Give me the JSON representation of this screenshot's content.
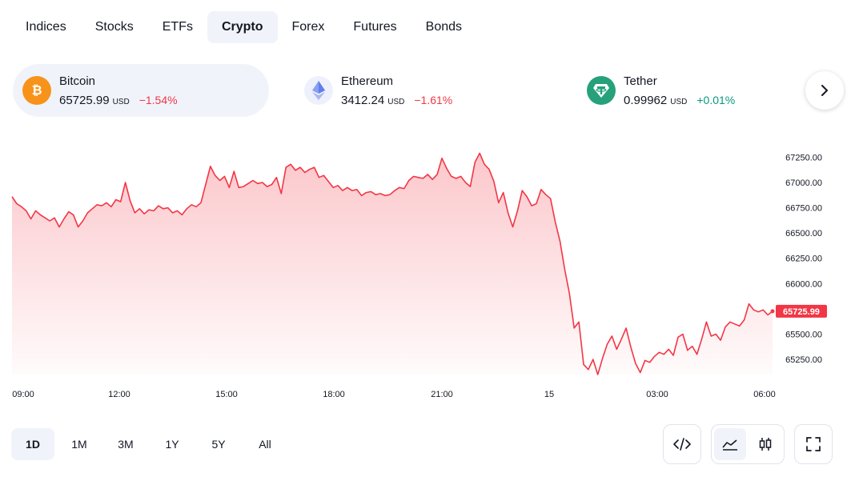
{
  "tabs": [
    {
      "label": "Indices",
      "active": false
    },
    {
      "label": "Stocks",
      "active": false
    },
    {
      "label": "ETFs",
      "active": false
    },
    {
      "label": "Crypto",
      "active": true
    },
    {
      "label": "Forex",
      "active": false
    },
    {
      "label": "Futures",
      "active": false
    },
    {
      "label": "Bonds",
      "active": false
    }
  ],
  "assets": [
    {
      "name": "Bitcoin",
      "price": "65725.99",
      "currency": "USD",
      "change": "−1.54%",
      "direction": "down",
      "icon": "bitcoin-icon",
      "color": "#f7931a",
      "active": true
    },
    {
      "name": "Ethereum",
      "price": "3412.24",
      "currency": "USD",
      "change": "−1.61%",
      "direction": "down",
      "icon": "ethereum-icon",
      "color": "#627eea",
      "active": false
    },
    {
      "name": "Tether",
      "price": "0.99962",
      "currency": "USD",
      "change": "+0.01%",
      "direction": "up",
      "icon": "tether-icon",
      "color": "#26a17b",
      "active": false
    }
  ],
  "next_icon": "chevron-right-icon",
  "colors": {
    "line": "#f23645",
    "negative": "#f23645",
    "positive": "#089981",
    "accent_bg": "#f0f3fa"
  },
  "chart_data": {
    "type": "area",
    "series": [
      {
        "name": "Bitcoin",
        "values": [
          66860,
          66790,
          66760,
          66720,
          66640,
          66720,
          66680,
          66650,
          66620,
          66650,
          66560,
          66640,
          66710,
          66680,
          66560,
          66620,
          66700,
          66740,
          66780,
          66770,
          66800,
          66760,
          66830,
          66810,
          67000,
          66820,
          66700,
          66740,
          66690,
          66730,
          66720,
          66770,
          66740,
          66750,
          66700,
          66720,
          66680,
          66740,
          66780,
          66760,
          66800,
          66980,
          67160,
          67070,
          67020,
          67060,
          66950,
          67110,
          66950,
          66960,
          66990,
          67020,
          66990,
          67000,
          66960,
          66980,
          67050,
          66890,
          67150,
          67180,
          67120,
          67150,
          67100,
          67130,
          67150,
          67050,
          67070,
          67010,
          66950,
          66970,
          66920,
          66950,
          66920,
          66930,
          66870,
          66900,
          66910,
          66880,
          66890,
          66870,
          66880,
          66920,
          66950,
          66940,
          67020,
          67060,
          67050,
          67040,
          67080,
          67030,
          67080,
          67240,
          67140,
          67060,
          67040,
          67060,
          67000,
          66960,
          67200,
          67290,
          67180,
          67130,
          67010,
          66800,
          66900,
          66700,
          66560,
          66720,
          66920,
          66860,
          66770,
          66790,
          66930,
          66880,
          66840,
          66610,
          66420,
          66140,
          65900,
          65560,
          65620,
          65200,
          65150,
          65250,
          65100,
          65260,
          65400,
          65480,
          65350,
          65450,
          65560,
          65370,
          65210,
          65120,
          65240,
          65220,
          65280,
          65320,
          65300,
          65350,
          65290,
          65470,
          65500,
          65340,
          65380,
          65300,
          65450,
          65620,
          65480,
          65500,
          65440,
          65570,
          65620,
          65600,
          65580,
          65640,
          65800,
          65740,
          65720,
          65740,
          65690,
          65725.99
        ]
      }
    ],
    "x_tick_labels": [
      "09:00",
      "12:00",
      "15:00",
      "18:00",
      "21:00",
      "15",
      "03:00",
      "06:00"
    ],
    "y_tick_labels": [
      "67250.00",
      "67000.00",
      "66750.00",
      "66500.00",
      "66250.00",
      "66000.00",
      "65500.00",
      "65250.00"
    ],
    "last_value_label": "65725.99",
    "ylim": [
      65100,
      67380
    ],
    "grid": false,
    "legend": "none"
  },
  "ranges": [
    {
      "label": "1D",
      "active": true
    },
    {
      "label": "1M",
      "active": false
    },
    {
      "label": "3M",
      "active": false
    },
    {
      "label": "1Y",
      "active": false
    },
    {
      "label": "5Y",
      "active": false
    },
    {
      "label": "All",
      "active": false
    }
  ],
  "tools": {
    "embed_icon": "code-icon",
    "area_icon": "area-chart-icon",
    "candles_icon": "candlestick-icon",
    "fullscreen_icon": "fullscreen-icon"
  }
}
